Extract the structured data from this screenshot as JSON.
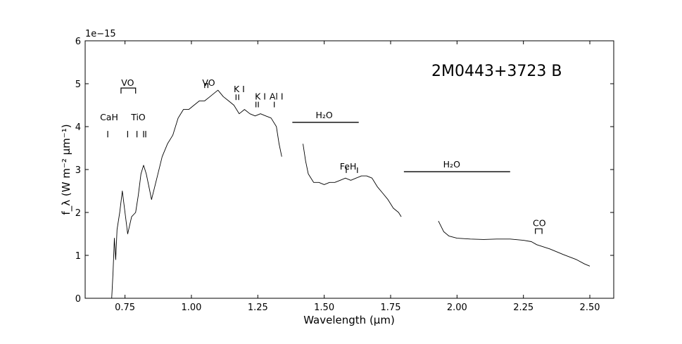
{
  "chart_data": {
    "type": "line",
    "title": "2M0443+3723 B",
    "xlabel": "Wavelength (μm)",
    "ylabel": "f_λ (W m⁻² μm⁻¹)",
    "y_offset_text": "1e−15",
    "xlim": [
      0.6,
      2.59
    ],
    "ylim": [
      0,
      6
    ],
    "x_tick_labels": [
      "0.75",
      "1.00",
      "1.25",
      "1.50",
      "1.75",
      "2.00",
      "2.25",
      "2.50"
    ],
    "x_ticks": [
      0.75,
      1.0,
      1.25,
      1.5,
      1.75,
      2.0,
      2.25,
      2.5
    ],
    "y_tick_labels": [
      "0",
      "1",
      "2",
      "3",
      "4",
      "5",
      "6"
    ],
    "y_ticks": [
      0,
      1,
      2,
      3,
      4,
      5,
      6
    ],
    "grid": false,
    "legend": "none",
    "series": [
      {
        "segments": [
          [
            [
              0.7,
              0.0
            ],
            [
              0.705,
              0.6
            ],
            [
              0.71,
              1.4
            ],
            [
              0.715,
              0.9
            ],
            [
              0.72,
              1.6
            ],
            [
              0.73,
              2.0
            ],
            [
              0.74,
              2.5
            ],
            [
              0.75,
              2.0
            ],
            [
              0.76,
              1.5
            ],
            [
              0.775,
              1.9
            ],
            [
              0.79,
              2.0
            ],
            [
              0.8,
              2.4
            ],
            [
              0.81,
              2.9
            ],
            [
              0.82,
              3.1
            ],
            [
              0.83,
              2.9
            ],
            [
              0.84,
              2.6
            ],
            [
              0.85,
              2.3
            ],
            [
              0.87,
              2.8
            ],
            [
              0.89,
              3.3
            ],
            [
              0.91,
              3.6
            ],
            [
              0.93,
              3.8
            ],
            [
              0.95,
              4.2
            ],
            [
              0.97,
              4.4
            ],
            [
              0.99,
              4.4
            ],
            [
              1.01,
              4.5
            ],
            [
              1.03,
              4.6
            ],
            [
              1.05,
              4.6
            ],
            [
              1.07,
              4.7
            ],
            [
              1.09,
              4.8
            ],
            [
              1.1,
              4.85
            ],
            [
              1.12,
              4.7
            ],
            [
              1.14,
              4.6
            ],
            [
              1.16,
              4.5
            ],
            [
              1.18,
              4.3
            ],
            [
              1.2,
              4.4
            ],
            [
              1.22,
              4.3
            ],
            [
              1.24,
              4.25
            ],
            [
              1.26,
              4.3
            ],
            [
              1.28,
              4.25
            ],
            [
              1.3,
              4.2
            ],
            [
              1.32,
              4.0
            ],
            [
              1.33,
              3.6
            ],
            [
              1.34,
              3.3
            ]
          ],
          [
            [
              1.42,
              3.6
            ],
            [
              1.43,
              3.2
            ],
            [
              1.44,
              2.9
            ],
            [
              1.46,
              2.7
            ],
            [
              1.48,
              2.7
            ],
            [
              1.5,
              2.65
            ],
            [
              1.52,
              2.7
            ],
            [
              1.54,
              2.7
            ],
            [
              1.56,
              2.75
            ],
            [
              1.58,
              2.8
            ],
            [
              1.6,
              2.75
            ],
            [
              1.62,
              2.8
            ],
            [
              1.64,
              2.85
            ],
            [
              1.66,
              2.85
            ],
            [
              1.68,
              2.8
            ],
            [
              1.7,
              2.6
            ],
            [
              1.72,
              2.45
            ],
            [
              1.74,
              2.3
            ],
            [
              1.76,
              2.1
            ],
            [
              1.78,
              2.0
            ],
            [
              1.79,
              1.9
            ]
          ],
          [
            [
              1.93,
              1.8
            ],
            [
              1.95,
              1.55
            ],
            [
              1.97,
              1.45
            ],
            [
              2.0,
              1.4
            ],
            [
              2.05,
              1.38
            ],
            [
              2.1,
              1.37
            ],
            [
              2.15,
              1.38
            ],
            [
              2.2,
              1.38
            ],
            [
              2.25,
              1.35
            ],
            [
              2.28,
              1.32
            ],
            [
              2.3,
              1.25
            ],
            [
              2.35,
              1.15
            ],
            [
              2.4,
              1.02
            ],
            [
              2.45,
              0.9
            ],
            [
              2.48,
              0.8
            ],
            [
              2.5,
              0.75
            ]
          ]
        ]
      }
    ],
    "features": [
      {
        "label": "CaH",
        "label_xy": [
          0.69,
          4.15
        ],
        "ticks": [
          0.685
        ],
        "tick_y": [
          3.75,
          3.9
        ],
        "bar": null,
        "bracket": null
      },
      {
        "label": "VO",
        "label_xy": [
          0.76,
          4.95
        ],
        "ticks": [],
        "tick_y": null,
        "bar": null,
        "bracket": [
          0.735,
          0.79,
          4.77,
          4.9
        ]
      },
      {
        "label": "TiO",
        "label_xy": [
          0.8,
          4.15
        ],
        "ticks": [
          0.76,
          0.795,
          0.82,
          0.828
        ],
        "tick_y": [
          3.75,
          3.9
        ],
        "bar": null,
        "bracket": null
      },
      {
        "label": "VO",
        "label_xy": [
          1.065,
          4.95
        ],
        "ticks": [],
        "tick_y": null,
        "bar": null,
        "bracket": [
          1.05,
          1.062,
          4.9,
          5.0
        ]
      },
      {
        "label": "K I",
        "label_xy": [
          1.18,
          4.8
        ],
        "ticks": [
          1.168,
          1.178
        ],
        "tick_y": [
          4.62,
          4.75
        ],
        "bar": null,
        "bracket": null
      },
      {
        "label": "K I",
        "label_xy": [
          1.26,
          4.63
        ],
        "ticks": [
          1.243,
          1.252
        ],
        "tick_y": [
          4.45,
          4.58
        ],
        "bar": null,
        "bracket": null
      },
      {
        "label": "Al I",
        "label_xy": [
          1.32,
          4.63
        ],
        "ticks": [
          1.312
        ],
        "tick_y": [
          4.45,
          4.58
        ],
        "bar": null,
        "bracket": null
      },
      {
        "label": "H₂O",
        "label_xy": [
          1.5,
          4.2
        ],
        "ticks": [],
        "tick_y": null,
        "bar": [
          1.38,
          1.63,
          4.1
        ],
        "bracket": null
      },
      {
        "label": "FeH",
        "label_xy": [
          1.59,
          3.0
        ],
        "ticks": [
          1.583,
          1.625
        ],
        "tick_y": [
          2.92,
          3.05
        ],
        "bar": null,
        "bracket": null
      },
      {
        "label": "H₂O",
        "label_xy": [
          1.98,
          3.05
        ],
        "ticks": [],
        "tick_y": null,
        "bar": [
          1.8,
          2.2,
          2.95
        ],
        "bracket": null
      },
      {
        "label": "CO",
        "label_xy": [
          2.31,
          1.68
        ],
        "ticks": [],
        "tick_y": null,
        "bar": null,
        "bracket": [
          2.295,
          2.32,
          1.5,
          1.62
        ]
      }
    ]
  }
}
